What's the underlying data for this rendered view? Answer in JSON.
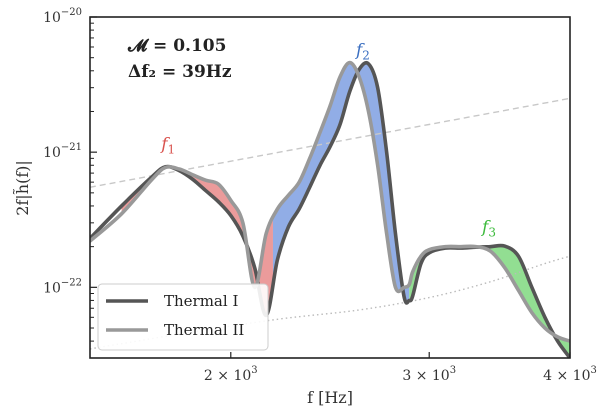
{
  "chart_data": {
    "type": "line",
    "title": "",
    "xlabel": "f [Hz]",
    "ylabel": "2f|h̃(f)|",
    "xscale": "log",
    "yscale": "log",
    "xlim": [
      1500,
      4000
    ],
    "ylim": [
      3e-23,
      1e-20
    ],
    "xticks": [
      {
        "value": 2000,
        "label": "2 × 10^3",
        "mant": "2 × 10",
        "exp": "3"
      },
      {
        "value": 3000,
        "label": "3 × 10^3",
        "mant": "3 × 10",
        "exp": "3"
      },
      {
        "value": 4000,
        "label": "4 × 10^3",
        "mant": "4 × 10",
        "exp": "3"
      }
    ],
    "yticks": [
      {
        "value": 1e-22,
        "label": "10^-22",
        "mant": "10",
        "exp": "−22"
      },
      {
        "value": 1e-21,
        "label": "10^-21",
        "mant": "10",
        "exp": "−21"
      },
      {
        "value": 1e-20,
        "label": "10^-20",
        "mant": "10",
        "exp": "−20"
      }
    ],
    "annotations": {
      "line1": {
        "lhs": "𝓜",
        "rhs": "= 0.105"
      },
      "line2": {
        "lhs": "Δf₂",
        "rhs": "= 39Hz"
      }
    },
    "peaks": [
      {
        "label": "f1",
        "sym": "f",
        "sub": "1",
        "color": "#d9534f",
        "x": 1760,
        "y": 1.05e-21
      },
      {
        "label": "f2",
        "sym": "f",
        "sub": "2",
        "color": "#3b6fc1",
        "x": 2620,
        "y": 5.2e-21
      },
      {
        "label": "f3",
        "sym": "f",
        "sub": "3",
        "color": "#3dbb3d",
        "x": 3390,
        "y": 2.55e-22
      }
    ],
    "legend": {
      "position": "bottom-left",
      "entries": [
        {
          "name": "Thermal I",
          "color": "#555555"
        },
        {
          "name": "Thermal II",
          "color": "#999999"
        }
      ]
    },
    "series": [
      {
        "name": "Thermal I",
        "color": "#555555",
        "x": [
          1500,
          1600,
          1700,
          1750,
          1800,
          1850,
          1900,
          1950,
          2000,
          2050,
          2100,
          2150,
          2200,
          2250,
          2300,
          2350,
          2400,
          2450,
          2500,
          2550,
          2600,
          2650,
          2700,
          2750,
          2800,
          2850,
          2880,
          2900,
          2950,
          3000,
          3100,
          3200,
          3300,
          3400,
          3500,
          3600,
          3700,
          3800,
          3900,
          4000
        ],
        "y": [
          2.3e-22,
          4e-22,
          6.5e-22,
          7.8e-22,
          7.3e-22,
          6.3e-22,
          5.2e-22,
          4.3e-22,
          3.4e-22,
          2.4e-22,
          1.4e-22,
          6.2e-23,
          1.6e-22,
          2.8e-22,
          3.8e-22,
          5.5e-22,
          8e-22,
          1.1e-21,
          1.6e-21,
          2.8e-21,
          4.1e-21,
          4.5e-21,
          3e-21,
          1e-21,
          2.5e-22,
          8.5e-23,
          8e-23,
          8.6e-23,
          1.5e-22,
          1.8e-22,
          1.95e-22,
          1.95e-22,
          1.98e-22,
          2e-22,
          2.02e-22,
          1.7e-22,
          1e-22,
          6e-23,
          4e-23,
          3e-23
        ]
      },
      {
        "name": "Thermal II",
        "color": "#999999",
        "x": [
          1500,
          1600,
          1700,
          1750,
          1800,
          1850,
          1900,
          1950,
          2000,
          2050,
          2100,
          2150,
          2200,
          2250,
          2300,
          2350,
          2400,
          2450,
          2500,
          2550,
          2600,
          2650,
          2700,
          2750,
          2800,
          2850,
          2880,
          2900,
          2950,
          3000,
          3100,
          3200,
          3300,
          3400,
          3500,
          3600,
          3700,
          3800,
          3900,
          4000
        ],
        "y": [
          2.2e-22,
          3.5e-22,
          6.2e-22,
          7.7e-22,
          7.5e-22,
          6.8e-22,
          6.2e-22,
          5.8e-22,
          4.4e-22,
          3e-22,
          1e-22,
          2.5e-22,
          3.8e-22,
          4.8e-22,
          6e-22,
          9e-22,
          1.4e-21,
          2.2e-21,
          3.6e-21,
          4.6e-21,
          3.6e-21,
          2e-21,
          8e-22,
          2.5e-22,
          1e-22,
          1e-22,
          1.05e-22,
          1.3e-22,
          1.7e-22,
          1.9e-22,
          2e-22,
          2e-22,
          2e-22,
          1.85e-22,
          1.4e-22,
          9.5e-23,
          6.5e-23,
          5e-23,
          4.3e-23,
          4e-23
        ]
      },
      {
        "name": "",
        "style": "dashed",
        "color": "#c8c8c8",
        "x": [
          1500,
          4000
        ],
        "y": [
          5.5e-22,
          2.5e-21
        ]
      },
      {
        "name": "",
        "style": "dotted",
        "color": "#bbbbbb",
        "x": [
          1500,
          1800,
          2200,
          2600,
          3000,
          3400,
          3800,
          4000
        ],
        "y": [
          3.5e-23,
          4.5e-23,
          5.8e-23,
          6.8e-23,
          8.4e-23,
          1.1e-22,
          1.5e-22,
          1.7e-22
        ]
      }
    ],
    "fill_regions": [
      {
        "label": "f1",
        "color": "#e88a8a",
        "x_range": [
          1600,
          2180
        ]
      },
      {
        "label": "f2",
        "color": "#7e9fe2",
        "x_range": [
          2180,
          2880
        ]
      },
      {
        "label": "f3",
        "color": "#7fd87f",
        "x_range": [
          2880,
          4000
        ]
      }
    ]
  }
}
